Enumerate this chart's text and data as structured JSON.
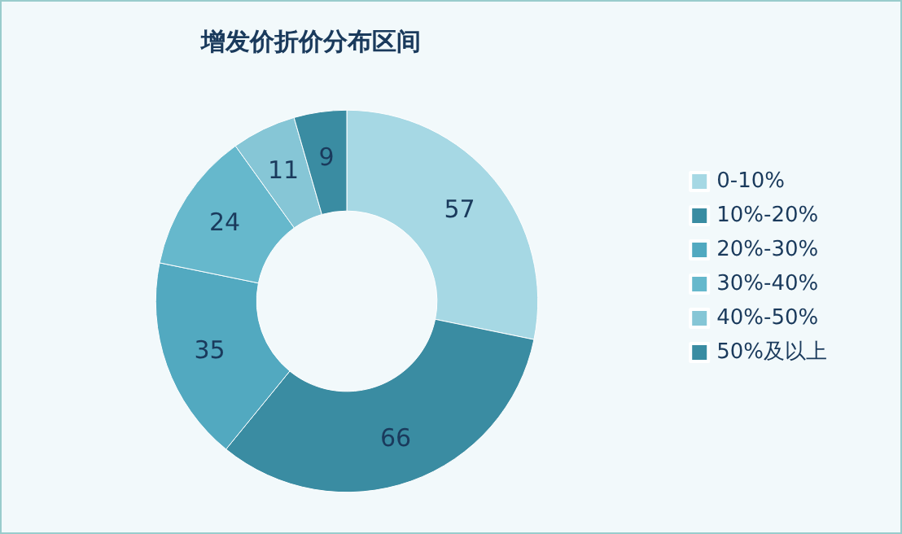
{
  "chart_data": {
    "type": "donut",
    "title": "增发价折价分布区间",
    "categories": [
      "0-10%",
      "10%-20%",
      "20%-30%",
      "30%-40%",
      "40%-50%",
      "50%及以上"
    ],
    "values": [
      57,
      66,
      35,
      24,
      11,
      9
    ],
    "colors": [
      "#a6d8e4",
      "#3a8ca2",
      "#52a9c0",
      "#66b8cc",
      "#86c6d6",
      "#3a8ca2"
    ],
    "data_labels": true,
    "legend": "right"
  }
}
